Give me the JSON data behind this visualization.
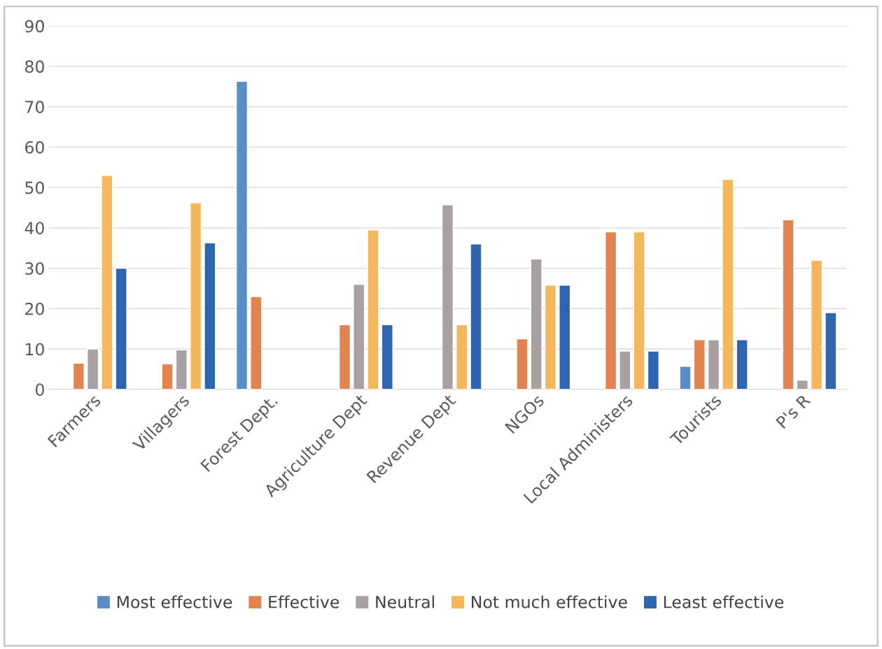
{
  "chart_data": {
    "type": "bar",
    "categories": [
      "Farmers",
      "Villagers",
      "Forest Dept.",
      "Agriculture Dept",
      "Revenue Dept",
      "NGOs",
      "Local Administers",
      "Tourists",
      "P's R"
    ],
    "series": [
      {
        "name": "Most effective",
        "color": "#5a8dc8",
        "values": [
          null,
          null,
          76.3,
          null,
          null,
          null,
          null,
          5.7,
          null
        ]
      },
      {
        "name": "Effective",
        "color": "#e2844f",
        "values": [
          6.5,
          6.3,
          23,
          16,
          null,
          12.5,
          39,
          12.3,
          42
        ]
      },
      {
        "name": "Neutral",
        "color": "#a9a0a4",
        "values": [
          10,
          9.8,
          null,
          26,
          45.7,
          32.3,
          9.5,
          12.3,
          2.3
        ]
      },
      {
        "name": "Not much effective",
        "color": "#f5b75c",
        "values": [
          53,
          46.2,
          null,
          39.5,
          16,
          25.8,
          39,
          52,
          32
        ]
      },
      {
        "name": "Least effective",
        "color": "#2f65ae",
        "values": [
          30,
          36.3,
          null,
          16,
          36,
          25.8,
          9.5,
          12.3,
          19
        ]
      }
    ],
    "ylim": [
      0,
      90
    ],
    "yticks": [
      0,
      10,
      20,
      30,
      40,
      50,
      60,
      70,
      80,
      90
    ],
    "grid": "y",
    "legend": "bottom"
  }
}
